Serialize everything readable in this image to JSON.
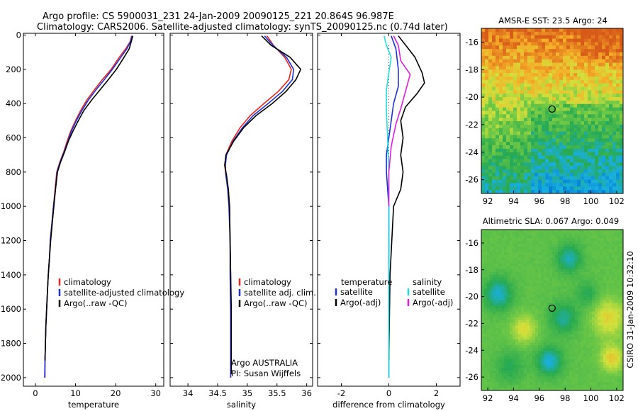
{
  "header": {
    "line1": "Argo profile: CS 5900031_231 24-Jan-2009 20090125_221 20.864S 96.987E",
    "line2": "Climatology: CARS2006. Satellite-adjusted climatology: synTS_20090125.nc (0.74d later)"
  },
  "side_label": "CSIRO 31-Jan-2009 10:32:10",
  "colors": {
    "climatology": "#e8261e",
    "satellite": "#1f2fd6",
    "argo": "#000000",
    "argo_salinity_diff": "#e020e0",
    "satellite_salinity_diff": "#22e0e0"
  },
  "chart_data": [
    {
      "type": "line",
      "id": "temperature",
      "xlabel": "temperature",
      "ylabel": "",
      "xlim": [
        -3,
        32
      ],
      "ylim": [
        2050,
        -10
      ],
      "xticks": [
        0,
        10,
        20,
        30
      ],
      "yticks": [
        0,
        200,
        400,
        600,
        800,
        1000,
        1200,
        1400,
        1600,
        1800,
        2000
      ],
      "legend": {
        "position": "bottom-right",
        "entries": [
          "climatology",
          "satellite-adjusted climatology",
          "Argo(..raw -QC)"
        ]
      },
      "series": [
        {
          "name": "climatology",
          "color_key": "climatology",
          "points": [
            [
              24.0,
              5
            ],
            [
              23.6,
              40
            ],
            [
              22.5,
              80
            ],
            [
              20.9,
              130
            ],
            [
              18.9,
              200
            ],
            [
              16.7,
              260
            ],
            [
              14.7,
              320
            ],
            [
              12.8,
              380
            ],
            [
              11.3,
              440
            ],
            [
              10.0,
              500
            ],
            [
              8.8,
              560
            ],
            [
              7.9,
              620
            ],
            [
              7.1,
              680
            ],
            [
              6.1,
              740
            ],
            [
              5.3,
              800
            ],
            [
              4.9,
              900
            ],
            [
              4.5,
              1000
            ],
            [
              4.1,
              1100
            ],
            [
              3.7,
              1200
            ],
            [
              3.5,
              1300
            ],
            [
              3.2,
              1400
            ],
            [
              3.0,
              1500
            ],
            [
              2.8,
              1600
            ],
            [
              2.6,
              1700
            ],
            [
              2.5,
              1800
            ],
            [
              2.4,
              1900
            ],
            [
              2.4,
              2000
            ]
          ]
        },
        {
          "name": "satellite",
          "color_key": "satellite",
          "points": [
            [
              24.1,
              5
            ],
            [
              23.7,
              40
            ],
            [
              22.8,
              80
            ],
            [
              21.3,
              130
            ],
            [
              19.2,
              200
            ],
            [
              17.2,
              260
            ],
            [
              15.1,
              320
            ],
            [
              13.2,
              380
            ],
            [
              11.6,
              440
            ],
            [
              10.2,
              500
            ],
            [
              9.0,
              560
            ],
            [
              8.1,
              620
            ],
            [
              7.2,
              680
            ],
            [
              6.2,
              740
            ],
            [
              5.4,
              800
            ],
            [
              5.0,
              900
            ],
            [
              4.5,
              1000
            ],
            [
              4.1,
              1100
            ],
            [
              3.7,
              1200
            ],
            [
              3.5,
              1300
            ],
            [
              3.2,
              1400
            ],
            [
              3.0,
              1500
            ],
            [
              2.8,
              1600
            ],
            [
              2.6,
              1700
            ],
            [
              2.5,
              1800
            ],
            [
              2.4,
              1900
            ],
            [
              2.3,
              2000
            ]
          ]
        },
        {
          "name": "Argo(..raw -QC)",
          "color_key": "argo",
          "points": [
            [
              24.3,
              5
            ],
            [
              24.0,
              30
            ],
            [
              23.4,
              80
            ],
            [
              22.1,
              130
            ],
            [
              20.2,
              200
            ],
            [
              18.2,
              260
            ],
            [
              16.1,
              320
            ],
            [
              14.0,
              380
            ],
            [
              12.1,
              440
            ],
            [
              10.7,
              500
            ],
            [
              9.4,
              560
            ],
            [
              8.2,
              620
            ],
            [
              7.3,
              680
            ],
            [
              6.3,
              740
            ],
            [
              5.5,
              800
            ],
            [
              5.0,
              900
            ],
            [
              4.6,
              1000
            ],
            [
              4.2,
              1100
            ],
            [
              3.8,
              1200
            ],
            [
              3.5,
              1300
            ],
            [
              3.2,
              1400
            ],
            [
              3.0,
              1500
            ],
            [
              2.8,
              1600
            ],
            [
              2.6,
              1700
            ],
            [
              2.5,
              1800
            ],
            [
              2.4,
              1900
            ]
          ]
        }
      ]
    },
    {
      "type": "line",
      "id": "salinity",
      "xlabel": "salinity",
      "ylabel": "",
      "xlim": [
        33.7,
        36.1
      ],
      "ylim": [
        2050,
        -10
      ],
      "xticks": [
        34,
        34.5,
        35,
        35.5,
        36
      ],
      "yticks": [
        0,
        200,
        400,
        600,
        800,
        1000,
        1200,
        1400,
        1600,
        1800,
        2000
      ],
      "legend": {
        "position": "bottom-right",
        "entries": [
          "climatology",
          "satellite adj. clim.",
          "Argo(..raw -QC)"
        ]
      },
      "annotations": [
        "Argo AUSTRALIA",
        "PI: Susan Wijffels"
      ],
      "series": [
        {
          "name": "climatology",
          "color_key": "climatology",
          "points": [
            [
              35.33,
              5
            ],
            [
              35.44,
              60
            ],
            [
              35.63,
              130
            ],
            [
              35.74,
              200
            ],
            [
              35.7,
              260
            ],
            [
              35.52,
              330
            ],
            [
              35.28,
              400
            ],
            [
              35.05,
              470
            ],
            [
              34.88,
              540
            ],
            [
              34.74,
              620
            ],
            [
              34.64,
              700
            ],
            [
              34.62,
              760
            ],
            [
              34.64,
              820
            ],
            [
              34.68,
              900
            ],
            [
              34.7,
              1000
            ],
            [
              34.71,
              1200
            ],
            [
              34.72,
              1400
            ],
            [
              34.72,
              1600
            ],
            [
              34.72,
              1800
            ],
            [
              34.72,
              2000
            ]
          ]
        },
        {
          "name": "satellite",
          "color_key": "satellite",
          "points": [
            [
              35.29,
              5
            ],
            [
              35.43,
              60
            ],
            [
              35.66,
              130
            ],
            [
              35.78,
              200
            ],
            [
              35.76,
              260
            ],
            [
              35.59,
              330
            ],
            [
              35.35,
              400
            ],
            [
              35.1,
              470
            ],
            [
              34.92,
              540
            ],
            [
              34.76,
              620
            ],
            [
              34.65,
              700
            ],
            [
              34.63,
              760
            ],
            [
              34.64,
              820
            ],
            [
              34.67,
              900
            ],
            [
              34.69,
              1000
            ],
            [
              34.71,
              1200
            ],
            [
              34.71,
              1400
            ],
            [
              34.72,
              1600
            ],
            [
              34.72,
              1800
            ],
            [
              34.72,
              2000
            ]
          ]
        },
        {
          "name": "Argo(..raw -QC)",
          "color_key": "argo",
          "points": [
            [
              35.24,
              5
            ],
            [
              35.4,
              60
            ],
            [
              35.72,
              130
            ],
            [
              35.9,
              200
            ],
            [
              35.82,
              260
            ],
            [
              35.65,
              330
            ],
            [
              35.42,
              400
            ],
            [
              35.15,
              470
            ],
            [
              34.94,
              540
            ],
            [
              34.77,
              620
            ],
            [
              34.64,
              700
            ],
            [
              34.62,
              760
            ],
            [
              34.65,
              820
            ],
            [
              34.68,
              900
            ],
            [
              34.7,
              1000
            ],
            [
              34.71,
              1200
            ],
            [
              34.72,
              1400
            ],
            [
              34.73,
              1600
            ],
            [
              34.73,
              1800
            ],
            [
              34.73,
              1980
            ]
          ]
        }
      ]
    },
    {
      "type": "line",
      "id": "difference",
      "xlabel": "difference from climatology",
      "ylabel": "",
      "xlim": [
        -3,
        3
      ],
      "ylim": [
        2050,
        -10
      ],
      "xticks": [
        -2,
        0,
        2
      ],
      "yticks": [
        0,
        200,
        400,
        600,
        800,
        1000,
        1200,
        1400,
        1600,
        1800,
        2000
      ],
      "legend": {
        "position": "bottom",
        "headers": [
          "temperature",
          "salinity"
        ],
        "entries": [
          "satellite",
          "Argo(-adj)",
          "satellite",
          "Argo(-adj)"
        ]
      },
      "series": [
        {
          "name": "temperature satellite",
          "color_key": "satellite",
          "points": [
            [
              0.1,
              5
            ],
            [
              0.3,
              80
            ],
            [
              0.4,
              200
            ],
            [
              0.4,
              300
            ],
            [
              0.2,
              400
            ],
            [
              0.1,
              500
            ],
            [
              0.0,
              600
            ],
            [
              -0.1,
              700
            ],
            [
              -0.1,
              800
            ],
            [
              0.0,
              1000
            ],
            [
              0.0,
              1400
            ],
            [
              0.0,
              2000
            ]
          ]
        },
        {
          "name": "temperature Argo(-adj)",
          "color_key": "argo",
          "points": [
            [
              0.4,
              5
            ],
            [
              0.6,
              40
            ],
            [
              1.1,
              130
            ],
            [
              1.4,
              220
            ],
            [
              1.5,
              280
            ],
            [
              1.2,
              340
            ],
            [
              0.7,
              420
            ],
            [
              0.5,
              500
            ],
            [
              0.6,
              600
            ],
            [
              0.5,
              700
            ],
            [
              0.6,
              800
            ],
            [
              0.5,
              900
            ],
            [
              0.2,
              1000
            ],
            [
              0.05,
              1400
            ],
            [
              0.0,
              1900
            ]
          ]
        },
        {
          "name": "salinity satellite",
          "color_key": "satellite_salinity_diff",
          "points": [
            [
              -0.2,
              5
            ],
            [
              -0.1,
              60
            ],
            [
              0.1,
              130
            ],
            [
              0.0,
              220
            ],
            [
              -0.1,
              320
            ],
            [
              -0.1,
              450
            ],
            [
              -0.05,
              600
            ],
            [
              0.0,
              800
            ],
            [
              0.0,
              2000
            ]
          ]
        },
        {
          "name": "salinity Argo(-adj)",
          "color_key": "argo_salinity_diff",
          "points": [
            [
              0.2,
              5
            ],
            [
              0.4,
              60
            ],
            [
              0.5,
              150
            ],
            [
              0.9,
              230
            ],
            [
              0.7,
              330
            ],
            [
              0.5,
              430
            ],
            [
              0.3,
              520
            ],
            [
              0.1,
              650
            ],
            [
              0.0,
              800
            ],
            [
              0.0,
              1000
            ]
          ]
        }
      ]
    },
    {
      "type": "heatmap",
      "id": "sst_map",
      "title": "AMSR-E SST: 23.5 Argo: 24",
      "xlim": [
        91.5,
        102.5
      ],
      "ylim": [
        -27,
        -15
      ],
      "xticks": [
        92,
        94,
        96,
        98,
        100,
        102
      ],
      "yticks": [
        -16,
        -18,
        -20,
        -22,
        -24,
        -26
      ],
      "marker": [
        96.987,
        -20.864
      ]
    },
    {
      "type": "heatmap",
      "id": "sla_map",
      "title": "Altimetric SLA: 0.067 Argo: 0.049",
      "xlim": [
        91.5,
        102.5
      ],
      "ylim": [
        -27,
        -15
      ],
      "xticks": [
        92,
        94,
        96,
        98,
        100,
        102
      ],
      "yticks": [
        -16,
        -18,
        -20,
        -22,
        -24,
        -26
      ],
      "marker": [
        96.987,
        -20.864
      ]
    }
  ]
}
